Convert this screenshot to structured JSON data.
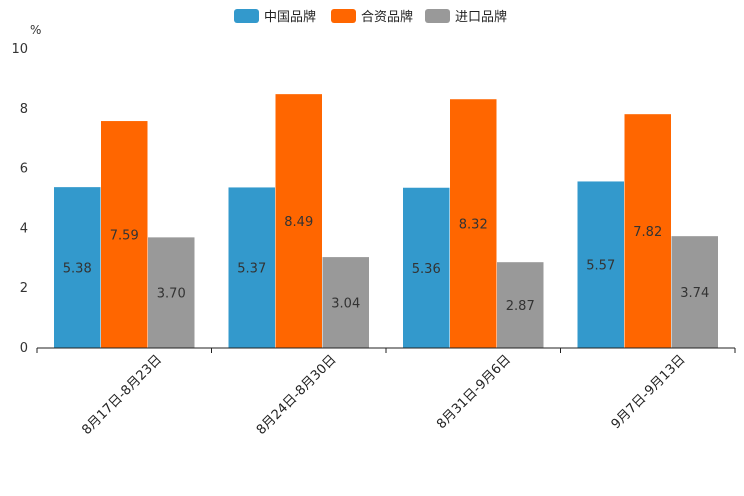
{
  "chart_data": {
    "type": "bar",
    "unit_label": "%",
    "categories": [
      "8月17日-8月23日",
      "8月24日-8月30日",
      "8月31日-9月6日",
      "9月7日-9月13日"
    ],
    "series": [
      {
        "name": "中国品牌",
        "color": "#3399cc",
        "values": [
          5.38,
          5.37,
          5.36,
          5.57
        ],
        "labels": [
          "5.38",
          "5.37",
          "5.36",
          "5.57"
        ]
      },
      {
        "name": "合资品牌",
        "color": "#ff6600",
        "values": [
          7.59,
          8.49,
          8.32,
          7.82
        ],
        "labels": [
          "7.59",
          "8.49",
          "8.32",
          "7.82"
        ]
      },
      {
        "name": "进口品牌",
        "color": "#999999",
        "values": [
          3.7,
          3.04,
          2.87,
          3.74
        ],
        "labels": [
          "3.70",
          "3.04",
          "2.87",
          "3.74"
        ]
      }
    ],
    "ylim": [
      0,
      10
    ],
    "yticks": [
      0,
      2,
      4,
      6,
      8,
      10
    ],
    "legend_position": "top-center"
  }
}
